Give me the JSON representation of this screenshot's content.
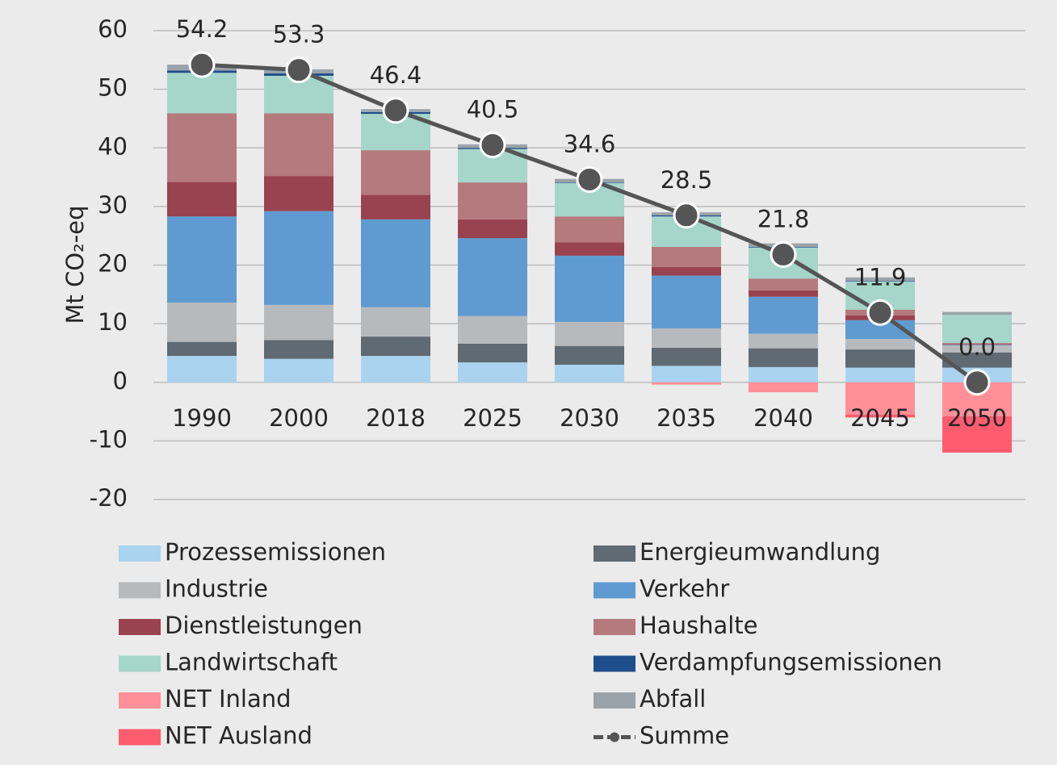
{
  "chart_data": {
    "type": "bar",
    "ylabel": "Mt CO₂-eq",
    "categories": [
      "1990",
      "2000",
      "2018",
      "2025",
      "2030",
      "2035",
      "2040",
      "2045",
      "2050"
    ],
    "ylim": [
      -20,
      60
    ],
    "yticks": [
      -20,
      -10,
      0,
      10,
      20,
      30,
      40,
      50,
      60
    ],
    "grid": true,
    "series": [
      {
        "name": "Prozessemissionen",
        "color": "#a9d3ee",
        "values": [
          4.5,
          4.0,
          4.5,
          3.4,
          3.0,
          2.8,
          2.6,
          2.5,
          2.5
        ]
      },
      {
        "name": "Energieumwandlung",
        "color": "#5f6a72",
        "values": [
          2.4,
          3.2,
          3.3,
          3.2,
          3.2,
          3.1,
          3.2,
          3.1,
          2.6
        ]
      },
      {
        "name": "Industrie",
        "color": "#b7babd",
        "values": [
          6.7,
          6.0,
          5.0,
          4.7,
          4.1,
          3.3,
          2.5,
          1.8,
          1.2
        ]
      },
      {
        "name": "Verkehr",
        "color": "#5f9bd1",
        "values": [
          14.7,
          16.0,
          15.0,
          13.3,
          11.3,
          9.0,
          6.3,
          3.2,
          0.1
        ]
      },
      {
        "name": "Dienstleistungen",
        "color": "#9a4350",
        "values": [
          5.9,
          6.0,
          4.2,
          3.2,
          2.3,
          1.5,
          1.1,
          0.8,
          0.1
        ]
      },
      {
        "name": "Haushalte",
        "color": "#b47a7e",
        "values": [
          11.7,
          10.7,
          7.6,
          6.3,
          4.4,
          3.4,
          2.0,
          1.0,
          0.2
        ]
      },
      {
        "name": "Landwirtschaft",
        "color": "#a6d5c9",
        "values": [
          6.9,
          6.4,
          6.2,
          5.7,
          5.7,
          5.2,
          5.3,
          4.8,
          4.8
        ]
      },
      {
        "name": "Verdampfungsemissionen",
        "color": "#1f4e8c",
        "values": [
          0.4,
          0.4,
          0.3,
          0.2,
          0.1,
          0.2,
          0.1,
          0.1,
          0.0
        ]
      },
      {
        "name": "NET Inland",
        "color": "#ff8f99",
        "values": [
          0,
          0,
          0,
          0,
          0,
          -0.4,
          -1.7,
          -5.5,
          -5.8
        ]
      },
      {
        "name": "Abfall",
        "color": "#9aa3a9",
        "values": [
          1.0,
          0.7,
          0.5,
          0.6,
          0.6,
          0.5,
          0.6,
          0.6,
          0.5
        ]
      },
      {
        "name": "NET Ausland",
        "color": "#ff5c70",
        "values": [
          0,
          0,
          0,
          0,
          0,
          0,
          0,
          -0.5,
          -6.2
        ]
      },
      {
        "name": "Summe",
        "type": "line",
        "color": "#555555",
        "values": [
          54.2,
          53.3,
          46.4,
          40.5,
          34.6,
          28.5,
          21.8,
          11.9,
          0.0
        ],
        "value_labels": [
          "54.2",
          "53.3",
          "46.4",
          "40.5",
          "34.6",
          "28.5",
          "21.8",
          "11.9",
          "0.0"
        ]
      }
    ]
  }
}
